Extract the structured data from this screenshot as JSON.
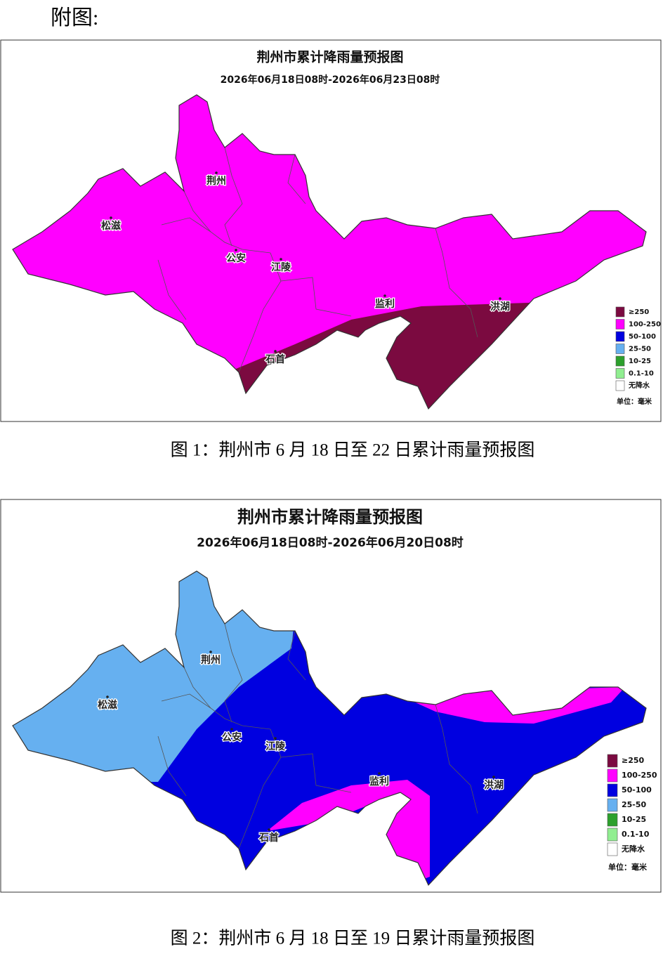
{
  "header": "附图:",
  "figures": [
    {
      "title": "荆州市累计降雨量预报图",
      "subtitle": "2026年06月18日08时-2026年06月23日08时",
      "cities": [
        "荆州",
        "松滋",
        "公安",
        "江陵",
        "监利",
        "洪湖",
        "石首"
      ],
      "legend": [
        {
          "label": "≥250",
          "color": "#7b0a40"
        },
        {
          "label": "100-250",
          "color": "#ff00ff"
        },
        {
          "label": "50-100",
          "color": "#0000e0"
        },
        {
          "label": "25-50",
          "color": "#66b0f0"
        },
        {
          "label": "10-25",
          "color": "#2ca02c"
        },
        {
          "label": "0.1-10",
          "color": "#90ee90"
        },
        {
          "label": "无降水",
          "color": "#ffffff"
        }
      ],
      "unit": "单位：毫米",
      "caption": "图 1：荆州市 6 月 18 日至 22 日累计雨量预报图"
    },
    {
      "title": "荆州市累计降雨量预报图",
      "subtitle": "2026年06月18日08时-2026年06月20日08时",
      "cities": [
        "荆州",
        "松滋",
        "公安",
        "江陵",
        "监利",
        "洪湖",
        "石首"
      ],
      "legend": [
        {
          "label": "≥250",
          "color": "#7b0a40"
        },
        {
          "label": "100-250",
          "color": "#ff00ff"
        },
        {
          "label": "50-100",
          "color": "#0000e0"
        },
        {
          "label": "25-50",
          "color": "#66b0f0"
        },
        {
          "label": "10-25",
          "color": "#2ca02c"
        },
        {
          "label": "0.1-10",
          "color": "#90ee90"
        },
        {
          "label": "无降水",
          "color": "#ffffff"
        }
      ],
      "unit": "单位：毫米",
      "caption": "图 2：荆州市 6 月 18 日至 19 日累计雨量预报图"
    }
  ]
}
